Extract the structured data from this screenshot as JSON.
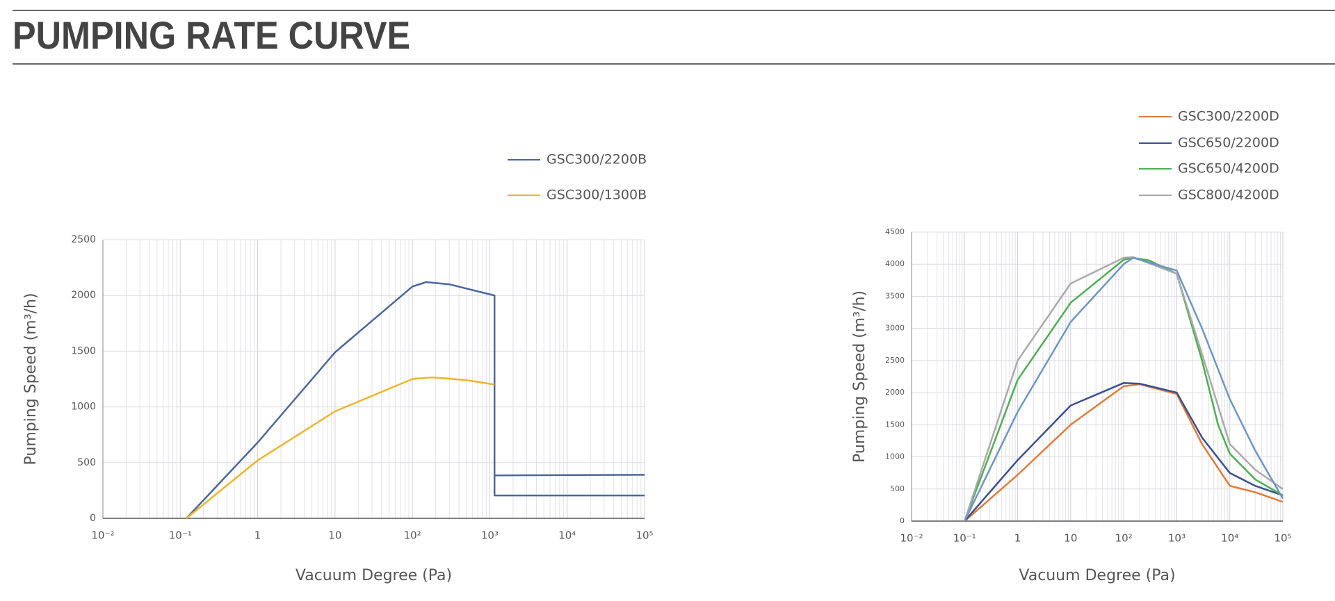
{
  "page_title": "PUMPING RATE CURVE",
  "chart_data": [
    {
      "type": "line",
      "x_label": "Vacuum Degree (Pa)",
      "y_label": "Pumping Speed (m³/h)",
      "log_x": true,
      "grid": true,
      "xlim": [
        0.01,
        100000
      ],
      "xticks": [
        {
          "value": 0.01,
          "label": "10⁻²"
        },
        {
          "value": 0.1,
          "label": "10⁻¹"
        },
        1,
        10,
        {
          "value": 100,
          "label": "10²"
        },
        {
          "value": 1000,
          "label": "10³"
        },
        {
          "value": 10000,
          "label": "10⁴"
        },
        {
          "value": 100000,
          "label": "10⁵"
        }
      ],
      "ylim": [
        0,
        2500
      ],
      "yticks": [
        0,
        500,
        1000,
        1500,
        2000,
        2500
      ],
      "series": [
        {
          "name": "GSC300/2200B",
          "color": "#4a66a0",
          "x": [
            0.12,
            1,
            10,
            100,
            150,
            300,
            1000,
            1150,
            1150,
            100000,
            null,
            1150,
            1150,
            100000
          ],
          "values": [
            0,
            680,
            1490,
            2080,
            2120,
            2100,
            2010,
            2000,
            385,
            390,
            null,
            385,
            205,
            205
          ]
        },
        {
          "name": "GSC300/1300B",
          "color": "#f0b429",
          "x": [
            0.12,
            1,
            10,
            100,
            180,
            500,
            1150
          ],
          "values": [
            0,
            520,
            960,
            1250,
            1265,
            1240,
            1200
          ]
        }
      ]
    },
    {
      "type": "line",
      "x_label": "Vacuum Degree (Pa)",
      "y_label": "Pumping Speed (m³/h)",
      "log_x": true,
      "grid": true,
      "xlim": [
        0.01,
        100000
      ],
      "xticks": [
        {
          "value": 0.01,
          "label": "10⁻²"
        },
        {
          "value": 0.1,
          "label": "10⁻¹"
        },
        1,
        10,
        {
          "value": 100,
          "label": "10²"
        },
        {
          "value": 1000,
          "label": "10³"
        },
        {
          "value": 10000,
          "label": "10⁴"
        },
        {
          "value": 100000,
          "label": "10⁵"
        }
      ],
      "ylim": [
        0,
        4500
      ],
      "yticks": [
        0,
        500,
        1000,
        1500,
        2000,
        2500,
        3000,
        3500,
        4000,
        4500
      ],
      "series": [
        {
          "name": "GSC300/2200D",
          "color": "#e07b39",
          "x": [
            0.1,
            1,
            10,
            100,
            200,
            1000,
            3000,
            10000,
            30000,
            100000
          ],
          "values": [
            0,
            720,
            1500,
            2100,
            2130,
            1980,
            1200,
            550,
            450,
            300
          ]
        },
        {
          "name": "GSC650/2200D",
          "color": "#3a4f8f",
          "x": [
            0.1,
            1,
            10,
            100,
            200,
            1000,
            3000,
            10000,
            30000,
            100000
          ],
          "values": [
            0,
            950,
            1800,
            2150,
            2140,
            2000,
            1300,
            750,
            550,
            400
          ]
        },
        {
          "name": "GSC650/4200D",
          "color": "#4caf50",
          "x": [
            0.1,
            1,
            10,
            100,
            150,
            300,
            1000,
            3000,
            6000,
            10000,
            30000,
            100000
          ],
          "values": [
            0,
            2200,
            3400,
            4070,
            4100,
            4060,
            3850,
            2500,
            1500,
            1050,
            650,
            400
          ]
        },
        {
          "name": "GSC800/4200D",
          "color": "#aaaaaa",
          "x": [
            0.1,
            1,
            10,
            100,
            150,
            1000,
            3000,
            10000,
            30000,
            100000
          ],
          "values": [
            0,
            2500,
            3700,
            4100,
            4110,
            3850,
            2600,
            1200,
            800,
            500
          ]
        },
        {
          "color": "#6b97c5",
          "x": [
            0.1,
            1,
            10,
            100,
            150,
            1000,
            3000,
            10000,
            30000,
            100000
          ],
          "values": [
            0,
            1700,
            3100,
            4000,
            4100,
            3900,
            3000,
            1900,
            1100,
            350
          ]
        }
      ]
    }
  ]
}
